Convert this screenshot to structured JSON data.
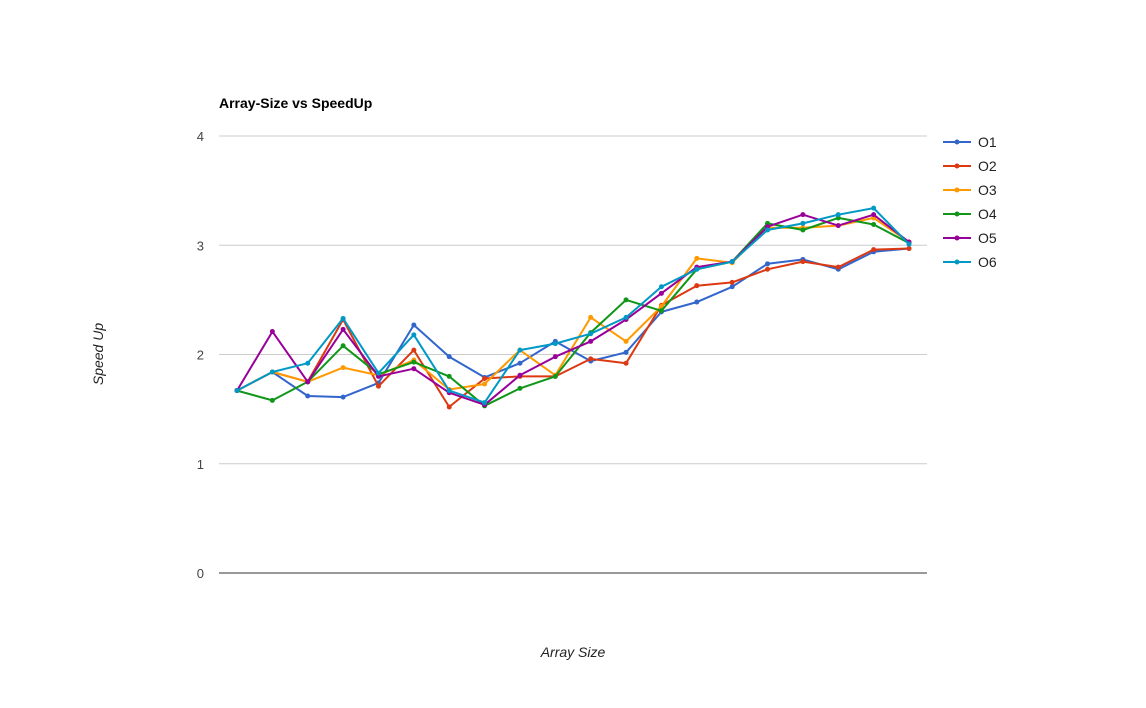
{
  "chart_data": {
    "type": "line",
    "title": "Array-Size vs SpeedUp",
    "xlabel": "Array Size",
    "ylabel": "Speed Up",
    "ylim": [
      0,
      4
    ],
    "yticks": [
      0,
      1,
      2,
      3,
      4
    ],
    "grid": true,
    "legend_position": "right",
    "x": [
      1,
      2,
      3,
      4,
      5,
      6,
      7,
      8,
      9,
      10,
      11,
      12,
      13,
      14,
      15,
      16,
      17,
      18,
      19,
      20
    ],
    "series": [
      {
        "name": "O1",
        "color": "#3366cc",
        "values": [
          1.67,
          1.84,
          1.62,
          1.61,
          1.74,
          2.27,
          1.98,
          1.79,
          1.92,
          2.12,
          1.94,
          2.02,
          2.39,
          2.48,
          2.62,
          2.83,
          2.87,
          2.78,
          2.94,
          2.97
        ]
      },
      {
        "name": "O2",
        "color": "#dc3912",
        "values": [
          1.67,
          1.84,
          1.75,
          2.32,
          1.71,
          2.04,
          1.52,
          1.78,
          1.8,
          1.8,
          1.96,
          1.92,
          2.45,
          2.63,
          2.66,
          2.78,
          2.85,
          2.8,
          2.96,
          2.97
        ]
      },
      {
        "name": "O3",
        "color": "#ff9900",
        "values": [
          1.67,
          1.84,
          1.75,
          1.88,
          1.81,
          1.95,
          1.68,
          1.73,
          2.04,
          1.81,
          2.34,
          2.12,
          2.44,
          2.88,
          2.84,
          3.16,
          3.16,
          3.18,
          3.25,
          3.03
        ]
      },
      {
        "name": "O4",
        "color": "#109618",
        "values": [
          1.67,
          1.58,
          1.75,
          2.08,
          1.82,
          1.93,
          1.8,
          1.53,
          1.69,
          1.8,
          2.2,
          2.5,
          2.4,
          2.78,
          2.85,
          3.2,
          3.14,
          3.25,
          3.19,
          3.02
        ]
      },
      {
        "name": "O5",
        "color": "#990099",
        "values": [
          1.67,
          2.21,
          1.75,
          2.23,
          1.8,
          1.87,
          1.65,
          1.54,
          1.81,
          1.98,
          2.12,
          2.32,
          2.56,
          2.8,
          2.85,
          3.17,
          3.28,
          3.18,
          3.28,
          3.03
        ]
      },
      {
        "name": "O6",
        "color": "#0099c6",
        "values": [
          1.67,
          1.84,
          1.92,
          2.33,
          1.83,
          2.18,
          1.67,
          1.56,
          2.04,
          2.1,
          2.19,
          2.34,
          2.62,
          2.78,
          2.85,
          3.14,
          3.2,
          3.28,
          3.34,
          3.01
        ]
      }
    ]
  }
}
